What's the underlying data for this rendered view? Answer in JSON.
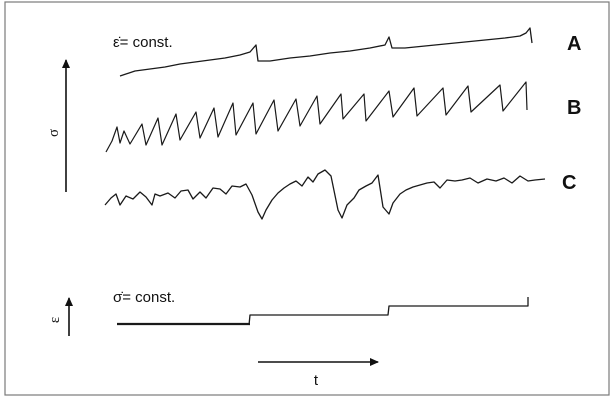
{
  "labels": {
    "curve_a": "A",
    "curve_b": "B",
    "curve_c": "C",
    "strain_rate_caption": "ε̇= const.",
    "stress_rate_caption": "σ̇= const.",
    "stress_axis": "σ",
    "strain_axis": "ε",
    "time_axis": "t"
  },
  "colors": {
    "stroke": "#1a1a1a",
    "frame": "#7a7a7a",
    "background": "#ffffff"
  }
}
